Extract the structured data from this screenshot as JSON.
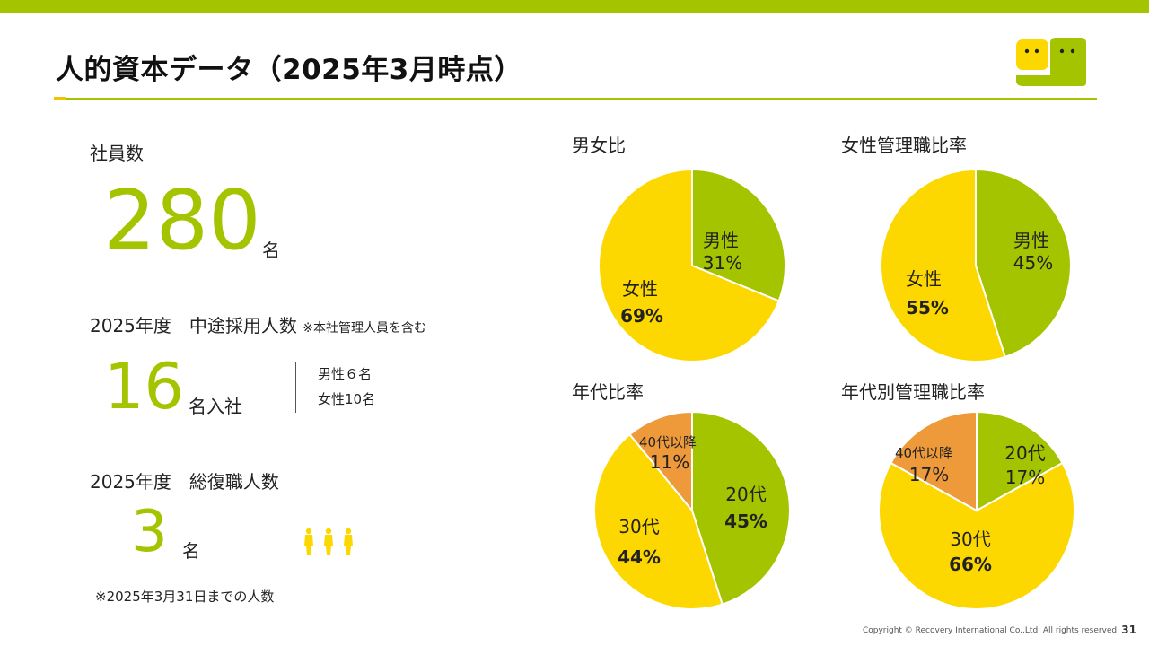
{
  "slide": {
    "title": "人的資本データ（2025年3月時点）",
    "copyright": "Copyright © Recovery International Co.,Ltd. All rights reserved.",
    "page_number": "31"
  },
  "colors": {
    "green": "#a4c400",
    "yellow": "#fdd800",
    "orange": "#ee9a3a"
  },
  "employees": {
    "label": "社員数",
    "value": "280",
    "unit": "名"
  },
  "mid_career": {
    "label": "2025年度　中途採用人数",
    "note": "※本社管理人員を含む",
    "value": "16",
    "unit": "名入社",
    "male": "男性６名",
    "female": "女性10名"
  },
  "general_staff": {
    "label": "2025年度　総復職人数",
    "value": "3",
    "unit": "名",
    "icon": "person-icon"
  },
  "footnote": "※2025年3月31日までの人数",
  "chart_data": [
    {
      "type": "pie",
      "title": "男女比",
      "slices": [
        {
          "label": "男性",
          "display": "31%",
          "value": 31,
          "color": "#a4c400"
        },
        {
          "label": "女性",
          "display": "69%",
          "value": 69,
          "color": "#fdd800"
        }
      ]
    },
    {
      "type": "pie",
      "title": "女性管理職比率",
      "slices": [
        {
          "label": "男性",
          "display": "45%",
          "value": 45,
          "color": "#a4c400"
        },
        {
          "label": "女性",
          "display": "55%",
          "value": 55,
          "color": "#fdd800"
        }
      ]
    },
    {
      "type": "pie",
      "title": "年代比率",
      "slices": [
        {
          "label": "20代",
          "display": "45%",
          "value": 45,
          "color": "#a4c400"
        },
        {
          "label": "30代",
          "display": "44%",
          "value": 44,
          "color": "#fdd800"
        },
        {
          "label": "40代以降",
          "display": "11%",
          "value": 11,
          "color": "#ee9a3a"
        }
      ]
    },
    {
      "type": "pie",
      "title": "年代別管理職比率",
      "slices": [
        {
          "label": "20代",
          "display": "17%",
          "value": 17,
          "color": "#a4c400"
        },
        {
          "label": "30代",
          "display": "66%",
          "value": 66,
          "color": "#fdd800"
        },
        {
          "label": "40代以降",
          "display": "17%",
          "value": 17,
          "color": "#ee9a3a"
        }
      ]
    }
  ]
}
